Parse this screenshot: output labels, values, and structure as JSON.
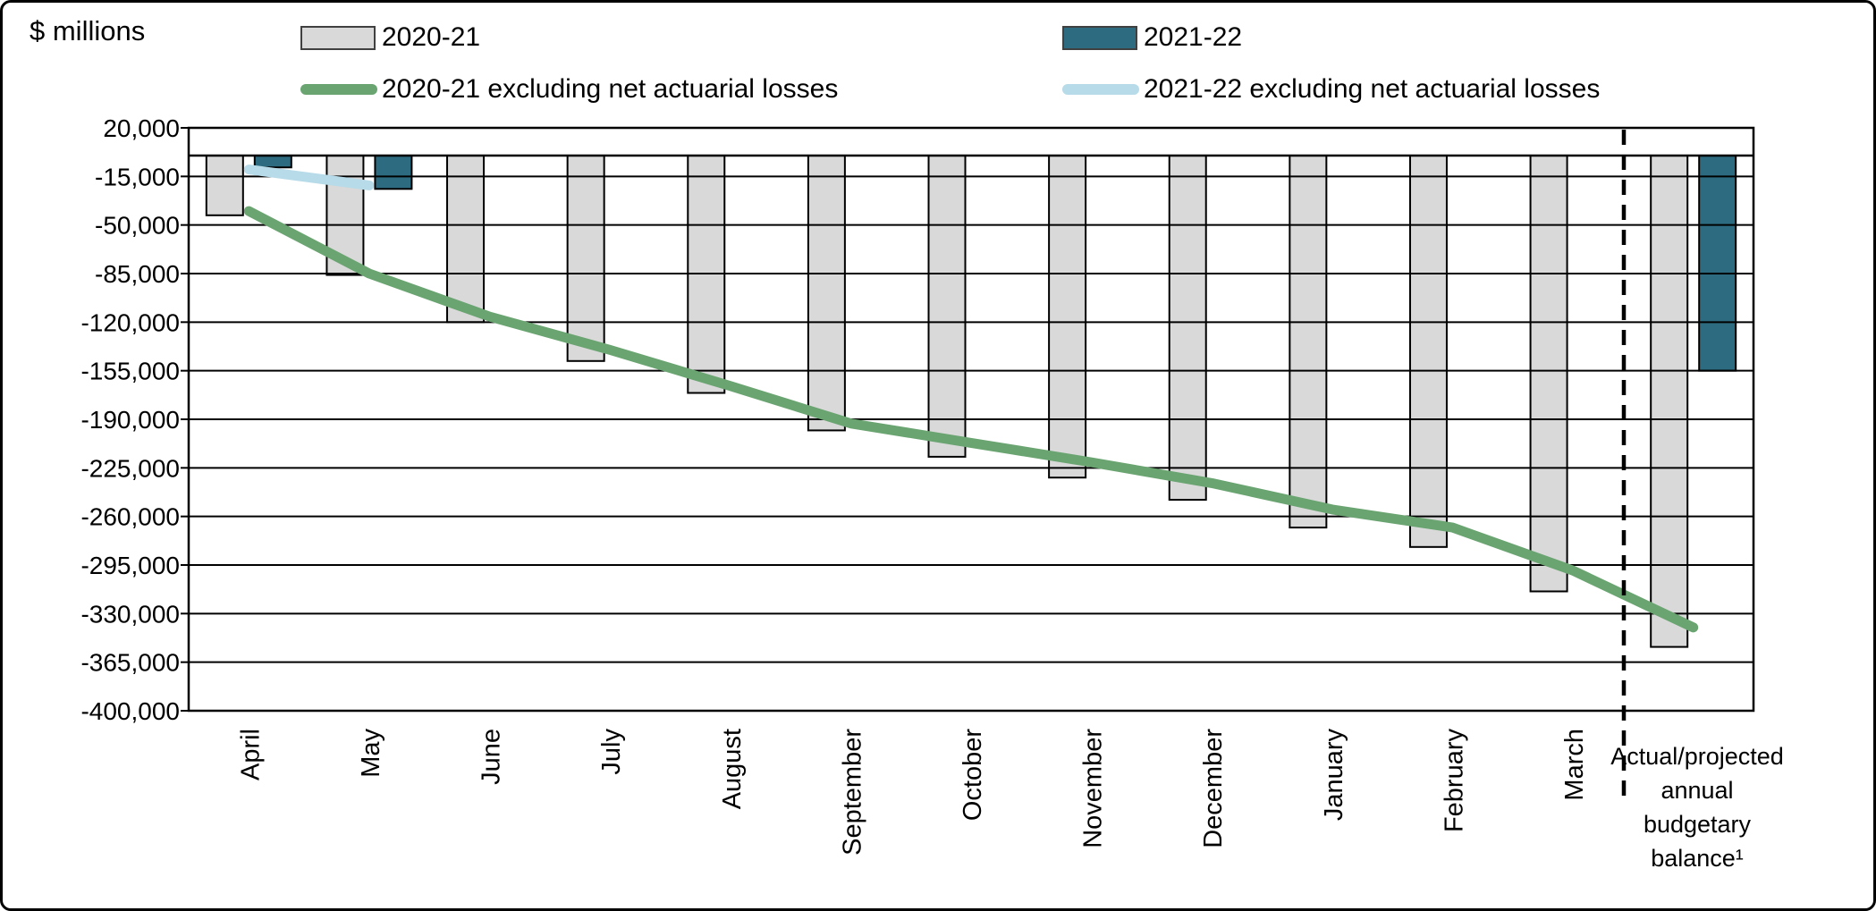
{
  "title": "$ millions",
  "legend": {
    "items": [
      {
        "label": "2020-21",
        "type": "bar",
        "color": "#d9d9d9"
      },
      {
        "label": "2021-22",
        "type": "bar",
        "color": "#2d6b80"
      },
      {
        "label": "2020-21 excluding net actuarial losses",
        "type": "line",
        "color": "#6aa471"
      },
      {
        "label": "2021-22 excluding net actuarial losses",
        "type": "line",
        "color": "#b7dbe8"
      }
    ]
  },
  "chart_data": {
    "type": "bar",
    "title": "$ millions",
    "ylabel": "$ millions",
    "xlabel": "",
    "grid": "on",
    "legend_position": "top",
    "ylim": [
      -400000,
      20000
    ],
    "ytick_step": 35000,
    "ytick_labels": [
      "20,000",
      "-15,000",
      "-50,000",
      "-85,000",
      "-120,000",
      "-155,000",
      "-190,000",
      "-225,000",
      "-260,000",
      "-295,000",
      "-330,000",
      "-365,000",
      "-400,000"
    ],
    "categories": [
      "April",
      "May",
      "June",
      "July",
      "August",
      "September",
      "October",
      "November",
      "December",
      "January",
      "February",
      "March",
      "Actual/projected annual budgetary balance¹"
    ],
    "final_category_lines": [
      "Actual/projected",
      "annual",
      "budgetary",
      "balance¹"
    ],
    "separator": {
      "style": "dashed",
      "after_category_index": 11
    },
    "series": [
      {
        "name": "2020-21",
        "type": "bar",
        "color": "#d9d9d9",
        "values": [
          -43000,
          -86000,
          -120000,
          -148000,
          -171000,
          -198000,
          -217000,
          -232000,
          -248000,
          -268000,
          -282000,
          -314000,
          -354000
        ]
      },
      {
        "name": "2021-22",
        "type": "bar",
        "color": "#2d6b80",
        "values": [
          -8500,
          -24000,
          null,
          null,
          null,
          null,
          null,
          null,
          null,
          null,
          null,
          null,
          -155000
        ]
      },
      {
        "name": "2020-21 excluding net actuarial losses",
        "type": "line",
        "color": "#6aa471",
        "values": [
          -40000,
          -85000,
          -116000,
          -140000,
          -166000,
          -193000,
          -207000,
          -221000,
          -236000,
          -255000,
          -268000,
          -299000,
          -340000
        ]
      },
      {
        "name": "2021-22 excluding net actuarial losses",
        "type": "line",
        "color": "#b7dbe8",
        "values": [
          -10000,
          -21500,
          null,
          null,
          null,
          null,
          null,
          null,
          null,
          null,
          null,
          null,
          null
        ]
      }
    ]
  }
}
